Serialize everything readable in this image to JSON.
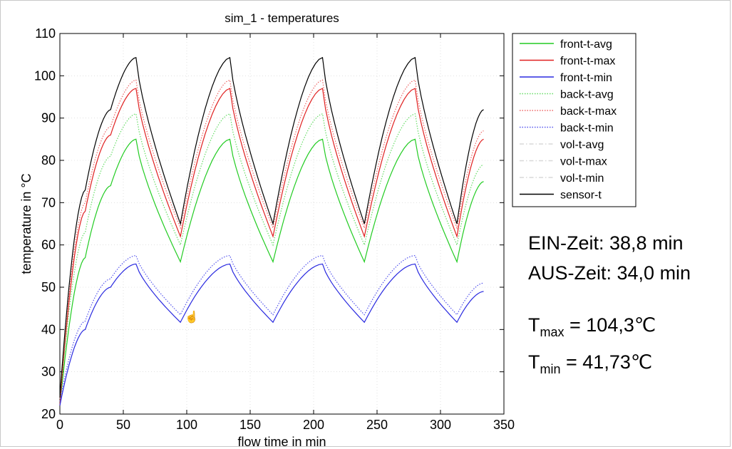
{
  "chart_data": {
    "type": "line",
    "title": "sim_1 - temperatures",
    "xlabel": "flow time in min",
    "ylabel": "temperature in °C",
    "xlim": [
      0,
      350
    ],
    "ylim": [
      20,
      110
    ],
    "xticks": [
      0,
      50,
      100,
      150,
      200,
      250,
      300,
      350
    ],
    "yticks": [
      20,
      30,
      40,
      50,
      60,
      70,
      80,
      90,
      100,
      110
    ],
    "grid": true,
    "legend_position": "outside-right",
    "series": [
      {
        "name": "front-t-avg",
        "color": "#22cc22",
        "style": "solid",
        "x": [
          0,
          20,
          40,
          60,
          95,
          134,
          168,
          207,
          240,
          280,
          313,
          334
        ],
        "y": [
          22,
          57,
          74,
          85,
          56,
          85,
          56,
          85,
          56,
          85,
          56,
          75
        ]
      },
      {
        "name": "front-t-max",
        "color": "#e02020",
        "style": "solid",
        "x": [
          0,
          20,
          40,
          60,
          95,
          134,
          168,
          207,
          240,
          280,
          313,
          334
        ],
        "y": [
          22,
          68,
          86,
          97,
          62,
          97,
          62,
          97,
          62,
          97,
          62,
          85
        ]
      },
      {
        "name": "front-t-min",
        "color": "#2a2ae0",
        "style": "solid",
        "x": [
          0,
          20,
          40,
          60,
          95,
          134,
          168,
          207,
          240,
          280,
          313,
          334
        ],
        "y": [
          22,
          40,
          50,
          55.5,
          41.7,
          55.5,
          41.7,
          55.5,
          41.7,
          55.5,
          41.7,
          49
        ]
      },
      {
        "name": "back-t-avg",
        "color": "#66dd66",
        "style": "dotted",
        "x": [
          0,
          20,
          40,
          60,
          95,
          134,
          168,
          207,
          240,
          280,
          313,
          334
        ],
        "y": [
          23,
          63,
          81,
          91,
          60,
          91,
          60,
          91,
          60,
          91,
          60,
          79
        ]
      },
      {
        "name": "back-t-max",
        "color": "#ee6666",
        "style": "dotted",
        "x": [
          0,
          20,
          40,
          60,
          95,
          134,
          168,
          207,
          240,
          280,
          313,
          334
        ],
        "y": [
          23,
          70,
          88,
          99,
          64,
          99,
          64,
          99,
          64,
          99,
          64,
          87
        ]
      },
      {
        "name": "back-t-min",
        "color": "#5555ee",
        "style": "dotted",
        "x": [
          0,
          20,
          40,
          60,
          95,
          134,
          168,
          207,
          240,
          280,
          313,
          334
        ],
        "y": [
          23,
          42,
          52,
          57.5,
          43.5,
          57.5,
          43.5,
          57.5,
          43.5,
          57.5,
          43.5,
          51
        ]
      },
      {
        "name": "vol-t-avg",
        "color": "#d8d8d8",
        "style": "dashdot",
        "x": [],
        "y": []
      },
      {
        "name": "vol-t-max",
        "color": "#d8d8d8",
        "style": "dashdot",
        "x": [],
        "y": []
      },
      {
        "name": "vol-t-min",
        "color": "#d8d8d8",
        "style": "dashdot",
        "x": [],
        "y": []
      },
      {
        "name": "sensor-t",
        "color": "#000000",
        "style": "solid",
        "x": [
          0,
          20,
          40,
          60,
          95,
          134,
          168,
          207,
          240,
          280,
          313,
          334
        ],
        "y": [
          24,
          73,
          92,
          104.3,
          65,
          104.3,
          65,
          104.3,
          65,
          104.3,
          65,
          92
        ]
      }
    ]
  },
  "annotations": {
    "ein": "EIN-Zeit:  38,8 min",
    "aus": "AUS-Zeit: 34,0 min",
    "tmax_symbol": "T",
    "tmax_sub": "max",
    "tmax_value": " = 104,3℃",
    "tmin_symbol": "T",
    "tmin_sub": "min",
    "tmin_value": " = 41,73℃"
  }
}
